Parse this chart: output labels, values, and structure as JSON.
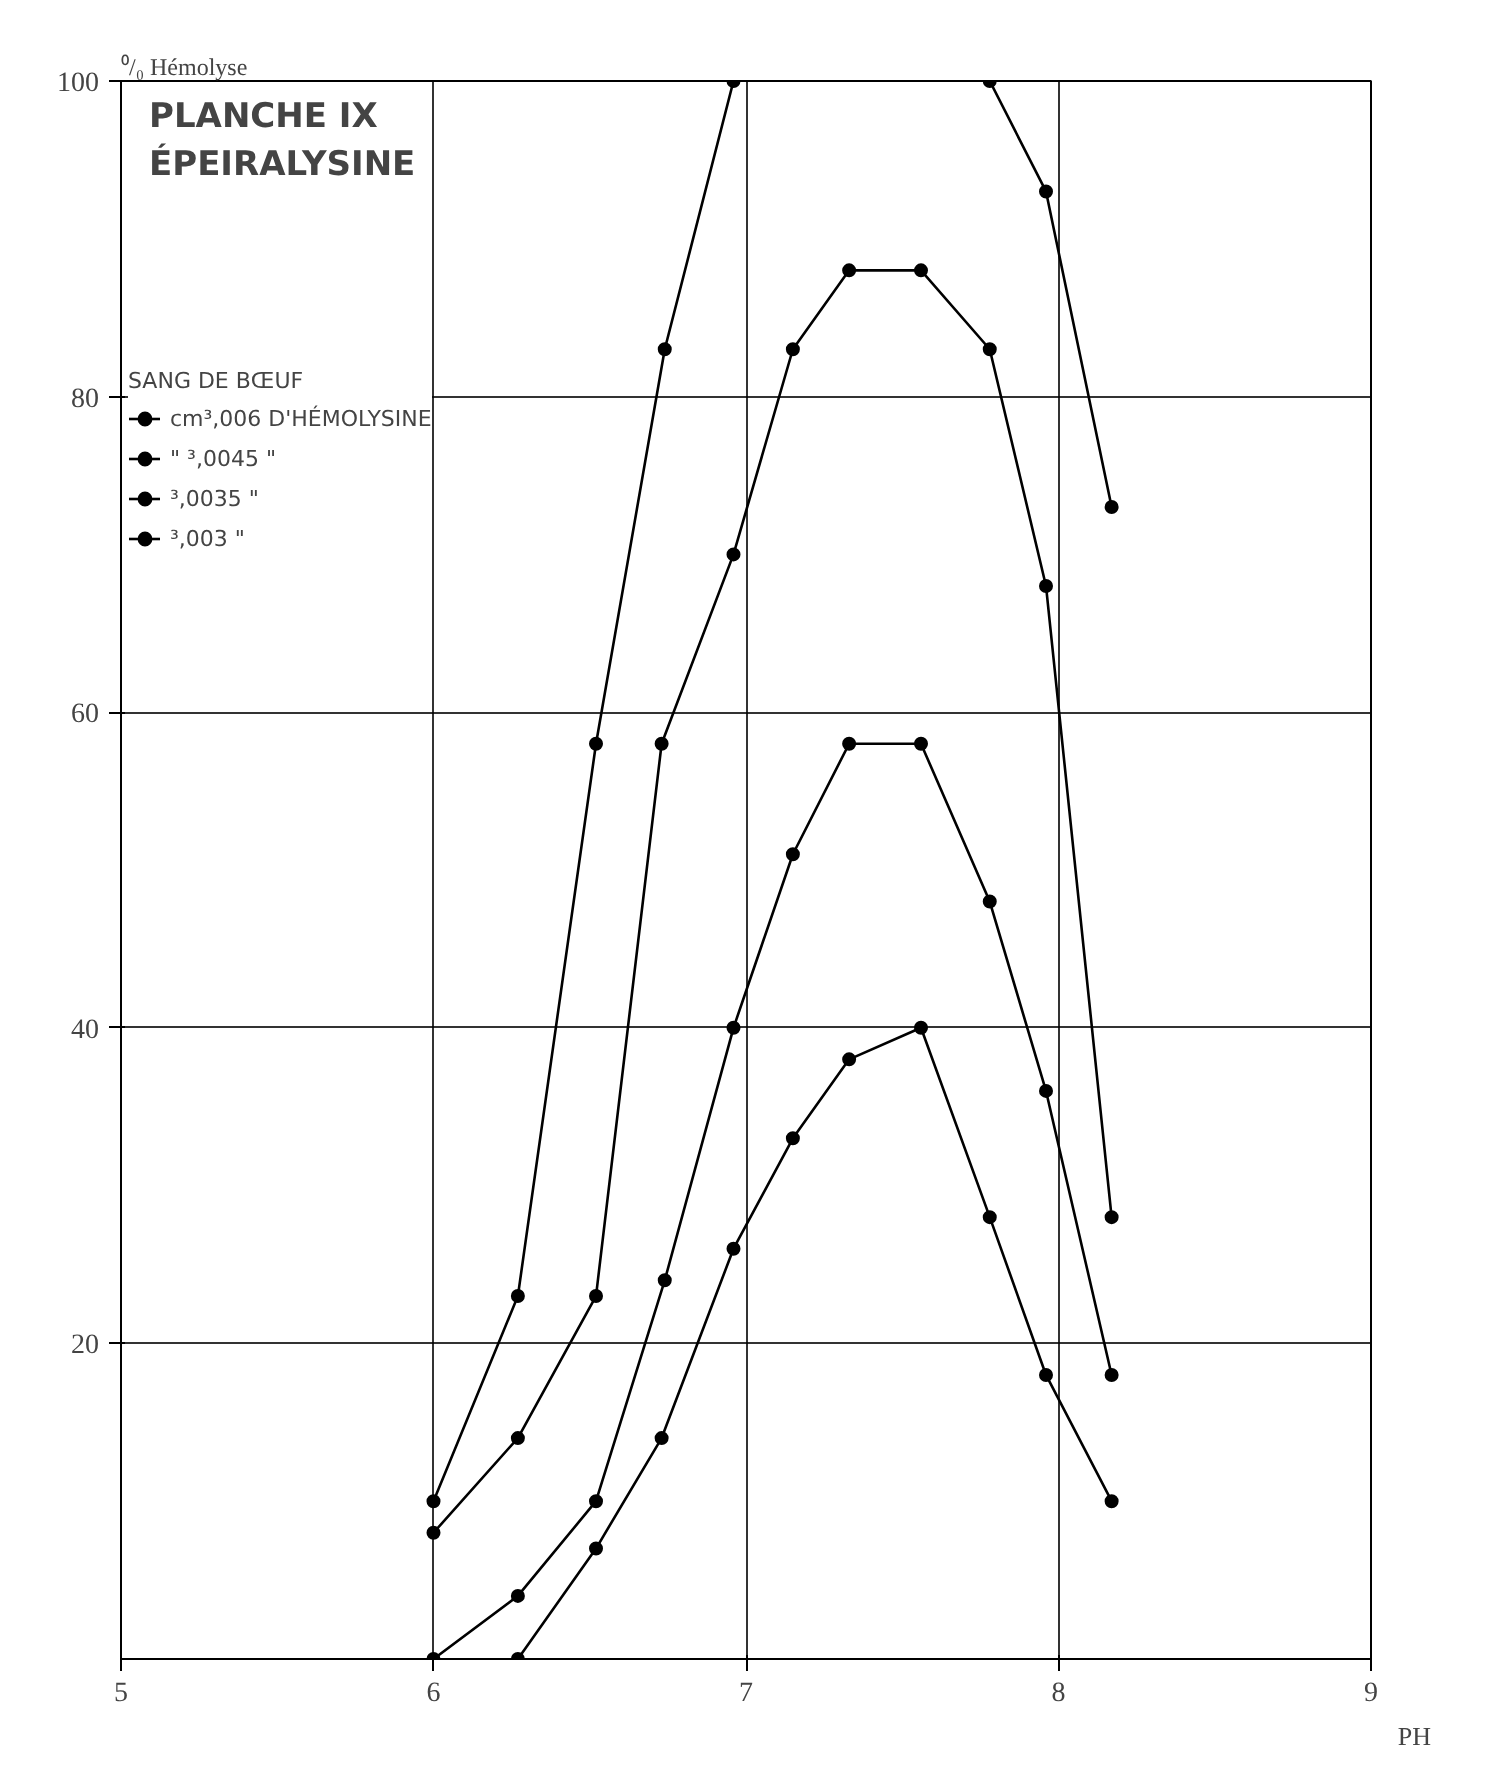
{
  "chart_data": {
    "type": "line",
    "title": "PLANCHE IX",
    "subtitle": "ÉPEIRALYSINE",
    "legend_title": "SANG DE BŒUF",
    "xlabel": "PH",
    "ylabel": "⁰/₀ Hémolyse",
    "xlim": [
      5,
      9
    ],
    "xticks": [
      5,
      6,
      7,
      8,
      9
    ],
    "ylim": [
      0,
      100
    ],
    "yticks": [
      20,
      40,
      60,
      80,
      100
    ],
    "grid": true,
    "legend": "top left",
    "marker": "circle",
    "line_style": "solid",
    "series": [
      {
        "name": "cm³,006 D'HÉMOLYSINE",
        "color": "#000000",
        "x": [
          6.0,
          6.27,
          6.52,
          6.74,
          6.96,
          7.15,
          7.33,
          7.78,
          7.96,
          8.17
        ],
        "values": [
          10,
          23,
          58,
          83,
          100,
          null,
          null,
          100,
          93,
          73
        ]
      },
      {
        "name": "\" ³,0045 \"",
        "color": "#000000",
        "x": [
          6.0,
          6.27,
          6.52,
          6.73,
          6.96,
          7.15,
          7.33,
          7.56,
          7.78,
          7.96,
          8.17
        ],
        "values": [
          8,
          14,
          23,
          58,
          70,
          83,
          88,
          88,
          83,
          68,
          28
        ]
      },
      {
        "name": "³,0035 \"",
        "color": "#000000",
        "x": [
          6.0,
          6.27,
          6.52,
          6.74,
          6.96,
          7.15,
          7.33,
          7.56,
          7.78,
          7.96,
          8.17
        ],
        "values": [
          0,
          4,
          10,
          24,
          40,
          51,
          58,
          58,
          48,
          36,
          18
        ]
      },
      {
        "name": "³,003 \"",
        "color": "#000000",
        "x": [
          6.27,
          6.52,
          6.73,
          6.96,
          7.15,
          7.33,
          7.56,
          7.78,
          7.96,
          8.17
        ],
        "values": [
          0,
          7,
          14,
          26,
          33,
          38,
          40,
          28,
          18,
          10
        ]
      }
    ]
  }
}
